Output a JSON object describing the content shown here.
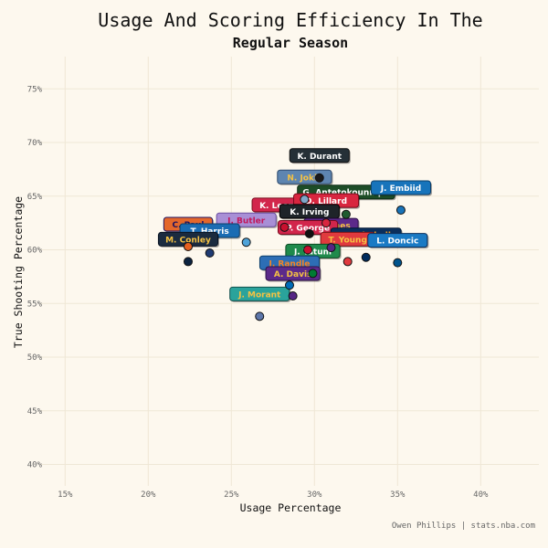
{
  "chart_data": {
    "type": "scatter",
    "title": "Usage And Scoring Efficiency In The",
    "subtitle": "Regular Season",
    "xlabel": "Usage Percentage",
    "ylabel": "True Shooting Percentage",
    "caption": "Owen Phillips | stats.nba.com",
    "xlim": [
      13.5,
      43.5
    ],
    "ylim": [
      38,
      78
    ],
    "x_ticks": [
      15,
      20,
      25,
      30,
      35,
      40
    ],
    "y_ticks": [
      40,
      45,
      50,
      55,
      60,
      65,
      70,
      75
    ],
    "x_tick_labels": [
      "15%",
      "20%",
      "25%",
      "30%",
      "35%",
      "40%"
    ],
    "y_tick_labels": [
      "40%",
      "45%",
      "50%",
      "55%",
      "60%",
      "65%",
      "70%",
      "75%"
    ],
    "grid": true,
    "points": [
      {
        "name": "K. Durant",
        "x": 30.3,
        "y": 66.7,
        "fill": "#1a1a1a",
        "label_bg": "#253037",
        "label_fg": "#ffffff",
        "label_border": "#111111"
      },
      {
        "name": "N. Jokic",
        "x": 29.4,
        "y": 64.7,
        "fill": "#7FA6C9",
        "label_bg": "#5E85B0",
        "label_fg": "#F5C243",
        "label_border": "#2d4a6e"
      },
      {
        "name": "G. Antetokounmpo",
        "x": 31.9,
        "y": 63.3,
        "fill": "#1F5B2F",
        "label_bg": "#1D4D27",
        "label_fg": "#ffffff",
        "label_border": "#0f2d16"
      },
      {
        "name": "J. Embiid",
        "x": 35.2,
        "y": 63.7,
        "fill": "#1973B8",
        "label_bg": "#1774BB",
        "label_fg": "#ffffff",
        "label_border": "#0d3f6a"
      },
      {
        "name": "K. Leonard",
        "x": 28.2,
        "y": 62.1,
        "fill": "#C8102E",
        "label_bg": "#D2264C",
        "label_fg": "#ffffff",
        "label_border": "#7a0a1c"
      },
      {
        "name": "D. Lillard",
        "x": 30.7,
        "y": 62.5,
        "fill": "#D8263F",
        "label_bg": "#D8263F",
        "label_fg": "#ffffff",
        "label_border": "#7a0a1c"
      },
      {
        "name": "K. Irving",
        "x": 29.7,
        "y": 61.5,
        "fill": "#111111",
        "label_bg": "#1E2429",
        "label_fg": "#ffffff",
        "label_border": "#000000"
      },
      {
        "name": "L. James",
        "x": 31.0,
        "y": 60.2,
        "fill": "#552583",
        "label_bg": "#5C2A8A",
        "label_fg": "#F5C243",
        "label_border": "#2e1248"
      },
      {
        "name": "P. George",
        "x": 29.6,
        "y": 60.0,
        "fill": "#C8102E",
        "label_bg": "#D2264C",
        "label_fg": "#ffffff",
        "label_border": "#7a0a1c"
      },
      {
        "name": "J. Butler",
        "x": 25.9,
        "y": 60.7,
        "fill": "#4FA3D9",
        "label_bg": "#A88FD6",
        "label_fg": "#C2185B",
        "label_border": "#6a4fa0"
      },
      {
        "name": "C. Paul",
        "x": 22.4,
        "y": 60.3,
        "fill": "#E56020",
        "label_bg": "#E4672B",
        "label_fg": "#1D1160",
        "label_border": "#1D1160"
      },
      {
        "name": "T. Harris",
        "x": 23.7,
        "y": 59.7,
        "fill": "#1F3B73",
        "label_bg": "#1A6CB3",
        "label_fg": "#ffffff",
        "label_border": "#0d3f6a"
      },
      {
        "name": "M. Conley",
        "x": 22.4,
        "y": 58.9,
        "fill": "#0C2340",
        "label_bg": "#1B2B3F",
        "label_fg": "#F5C243",
        "label_border": "#0b1524"
      },
      {
        "name": "D. Mitchell",
        "x": 33.1,
        "y": 59.3,
        "fill": "#002B5C",
        "label_bg": "#0B2F5C",
        "label_fg": "#F9A01B",
        "label_border": "#001530"
      },
      {
        "name": "T. Young",
        "x": 32.0,
        "y": 58.9,
        "fill": "#E03A3E",
        "label_bg": "#E03A3E",
        "label_fg": "#F5C243",
        "label_border": "#7a1518"
      },
      {
        "name": "L. Doncic",
        "x": 35.0,
        "y": 58.8,
        "fill": "#00538C",
        "label_bg": "#1A7AC4",
        "label_fg": "#ffffff",
        "label_border": "#0d2f5a"
      },
      {
        "name": "J. Tatum",
        "x": 29.9,
        "y": 57.8,
        "fill": "#007A33",
        "label_bg": "#1F8A4C",
        "label_fg": "#ffffff",
        "label_border": "#0b4a22"
      },
      {
        "name": "J. Randle",
        "x": 28.5,
        "y": 56.7,
        "fill": "#006BB6",
        "label_bg": "#2D6EB5",
        "label_fg": "#F58426",
        "label_border": "#0d3f6a"
      },
      {
        "name": "A. Davis",
        "x": 28.7,
        "y": 55.7,
        "fill": "#552583",
        "label_bg": "#5C2A8A",
        "label_fg": "#F5C243",
        "label_border": "#2e1248"
      },
      {
        "name": "J. Morant",
        "x": 26.7,
        "y": 53.8,
        "fill": "#5D76A9",
        "label_bg": "#2AA39B",
        "label_fg": "#F5C243",
        "label_border": "#12514d"
      }
    ]
  }
}
